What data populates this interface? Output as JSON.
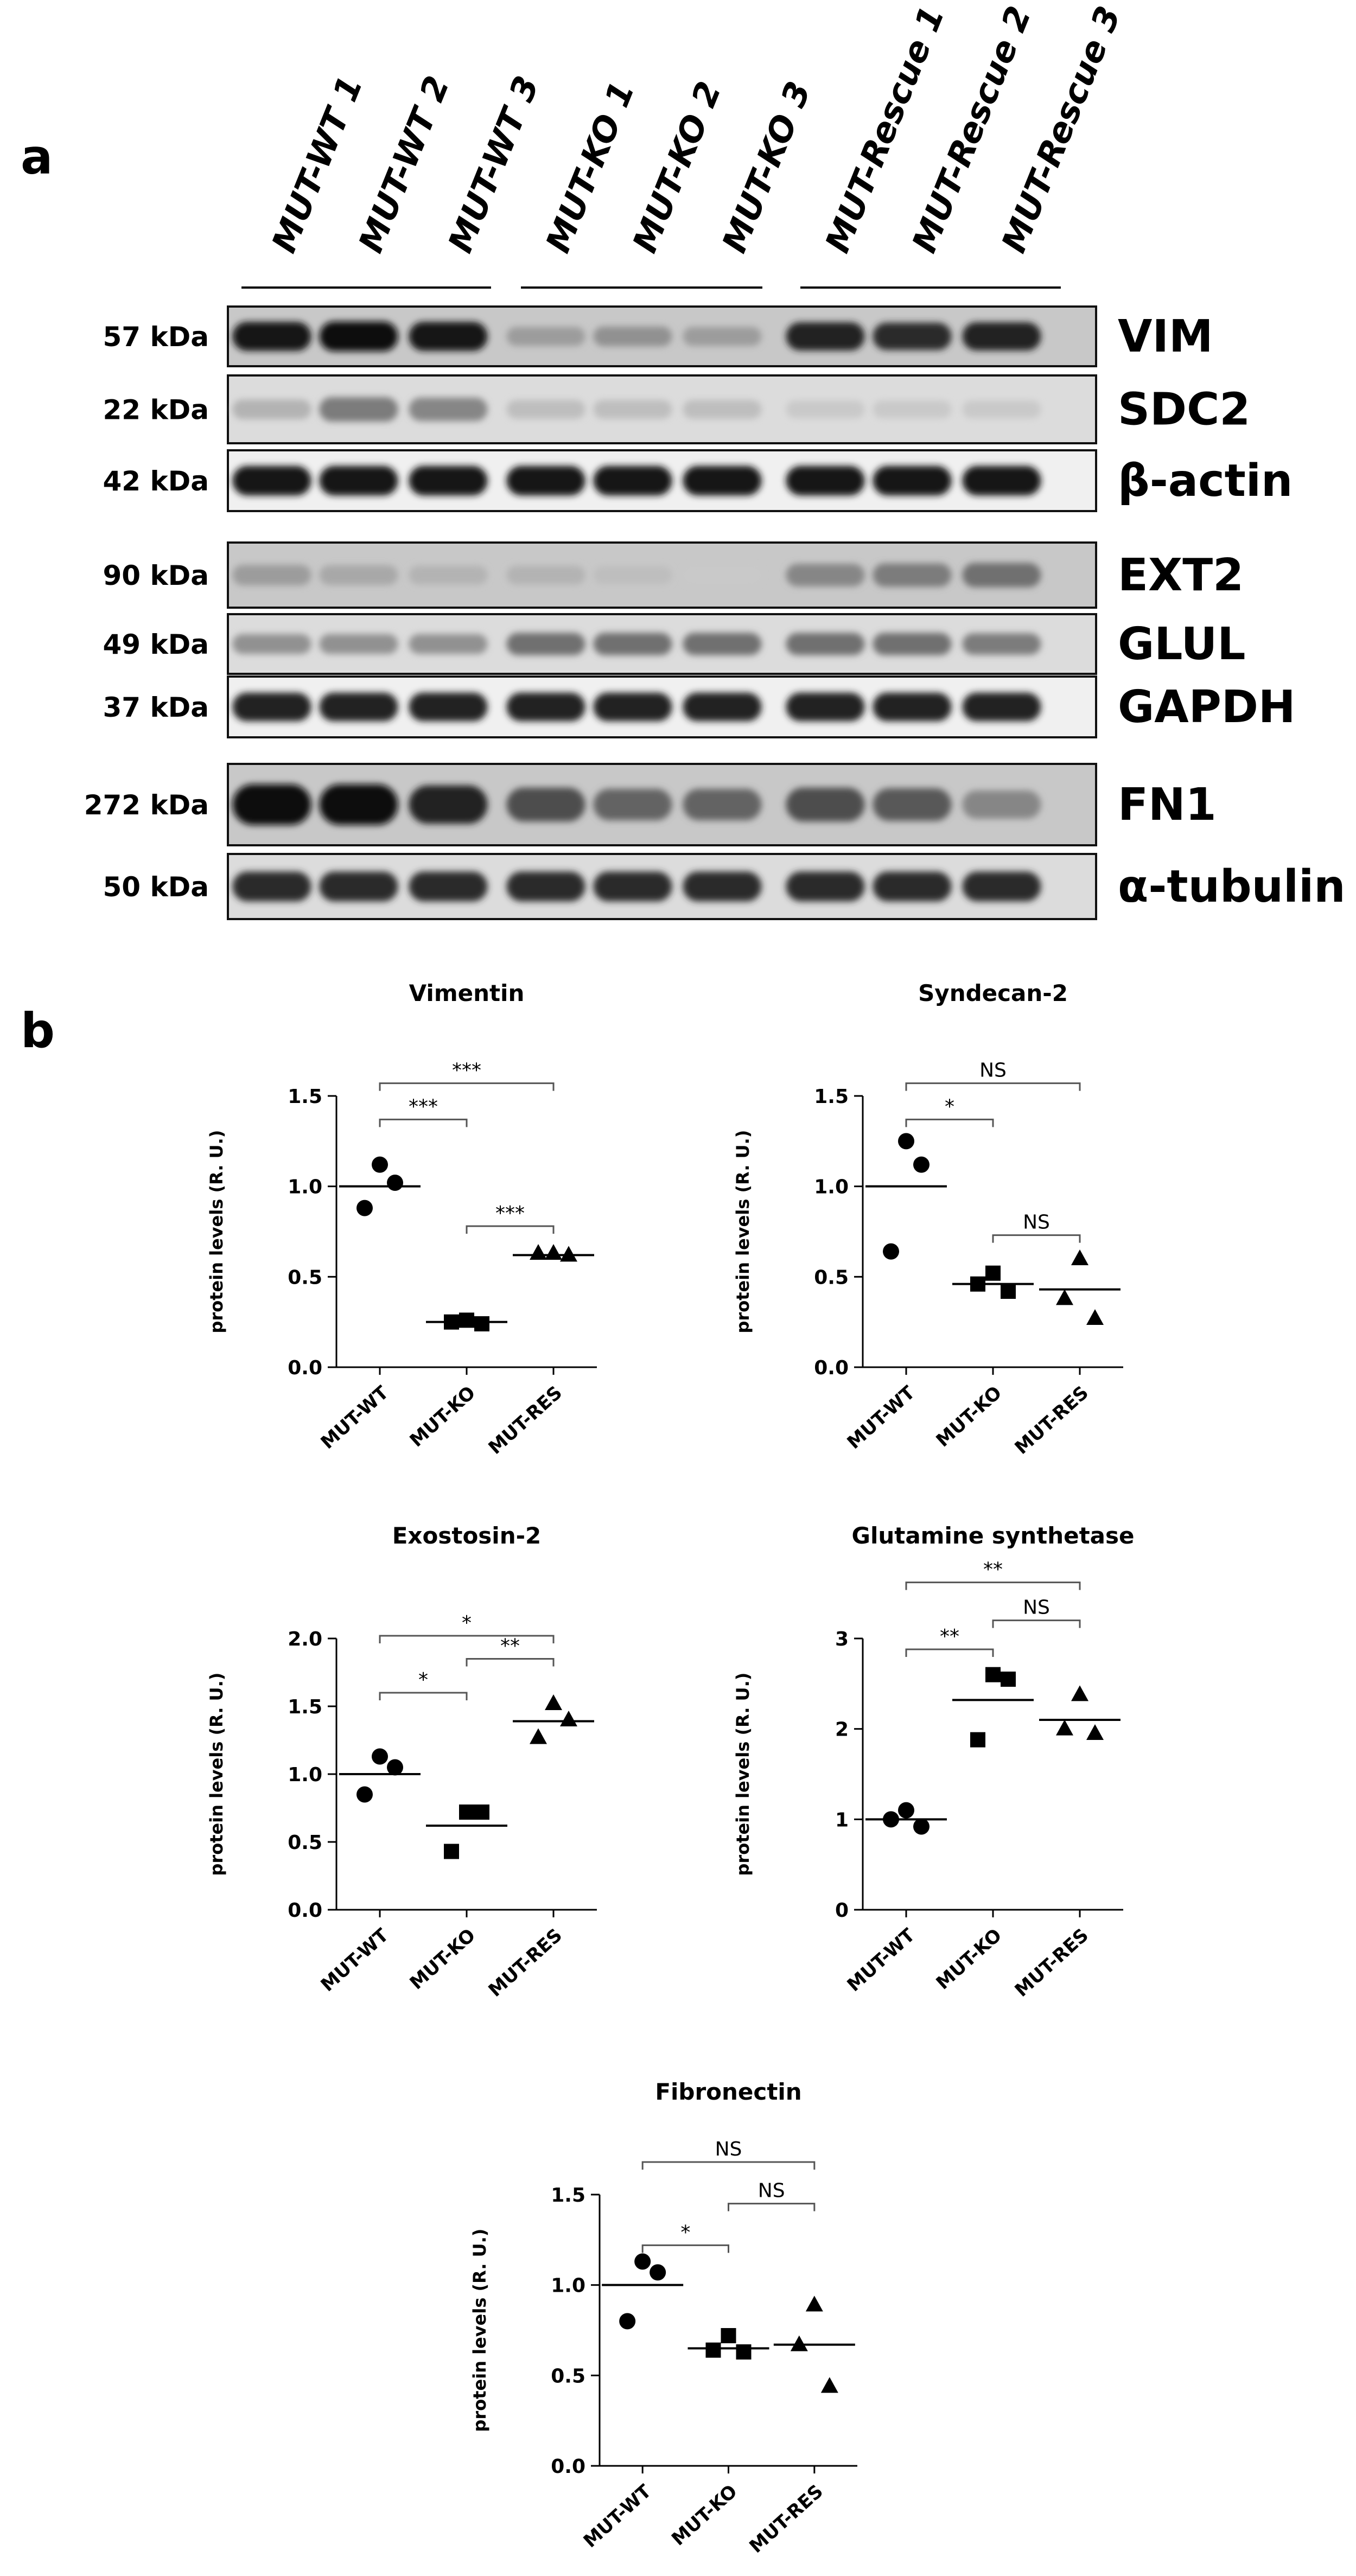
{
  "panel_a": {
    "letter": "a",
    "lane_labels": [
      "MUT-WT 1",
      "MUT-WT 2",
      "MUT-WT 3",
      "MUT-KO 1",
      "MUT-KO 2",
      "MUT-KO 3",
      "MUT-Rescue 1",
      "MUT-Rescue 2",
      "MUT-Rescue 3"
    ],
    "blots": [
      {
        "protein": "VIM",
        "kda": "57 kDa",
        "intensity": [
          0.95,
          1.0,
          0.95,
          0.35,
          0.4,
          0.35,
          0.9,
          0.85,
          0.9
        ]
      },
      {
        "protein": "SDC2",
        "kda": "22 kDa",
        "intensity": [
          0.25,
          0.5,
          0.45,
          0.2,
          0.2,
          0.2,
          0.15,
          0.15,
          0.15
        ]
      },
      {
        "protein": "β-actin",
        "kda": "42 kDa",
        "intensity": [
          0.95,
          0.95,
          0.95,
          0.95,
          0.95,
          0.95,
          0.95,
          0.95,
          0.95
        ]
      },
      {
        "protein": "EXT2",
        "kda": "90 kDa",
        "intensity": [
          0.35,
          0.3,
          0.25,
          0.25,
          0.2,
          0.15,
          0.45,
          0.5,
          0.55
        ]
      },
      {
        "protein": "GLUL",
        "kda": "49 kDa",
        "intensity": [
          0.4,
          0.4,
          0.4,
          0.55,
          0.55,
          0.55,
          0.55,
          0.55,
          0.5
        ]
      },
      {
        "protein": "GAPDH",
        "kda": "37 kDa",
        "intensity": [
          0.9,
          0.9,
          0.9,
          0.9,
          0.9,
          0.9,
          0.9,
          0.9,
          0.9
        ]
      },
      {
        "protein": "FN1",
        "kda": "272 kDa",
        "intensity": [
          1.0,
          1.0,
          0.9,
          0.7,
          0.6,
          0.6,
          0.7,
          0.65,
          0.45
        ]
      },
      {
        "protein": "α-tubulin",
        "kda": "50 kDa",
        "intensity": [
          0.85,
          0.85,
          0.85,
          0.85,
          0.85,
          0.85,
          0.85,
          0.85,
          0.85
        ]
      }
    ]
  },
  "panel_b": {
    "letter": "b"
  },
  "chart_data": [
    {
      "type": "scatter",
      "title": "Vimentin",
      "xlabel": "",
      "ylabel": "protein levels (R. U.)",
      "categories": [
        "MUT-WT",
        "MUT-KO",
        "MUT-RES"
      ],
      "ylim": [
        0,
        1.5
      ],
      "yticks": [
        "0.0",
        "0.5",
        "1.0",
        "1.5"
      ],
      "series": [
        {
          "marker": "circle",
          "values": [
            1.12,
            1.02,
            0.88
          ],
          "mean": 1.0
        },
        {
          "marker": "square",
          "values": [
            0.26,
            0.24,
            0.25
          ],
          "mean": 0.25
        },
        {
          "marker": "triangle",
          "values": [
            0.63,
            0.62,
            0.63
          ],
          "mean": 0.62
        }
      ],
      "comparisons": [
        {
          "from": 0,
          "to": 1,
          "label": "***",
          "y": 1.37
        },
        {
          "from": 0,
          "to": 2,
          "label": "***",
          "y": 1.57
        },
        {
          "from": 1,
          "to": 2,
          "label": "***",
          "y": 0.78
        }
      ]
    },
    {
      "type": "scatter",
      "title": "Syndecan-2",
      "xlabel": "",
      "ylabel": "protein levels (R. U.)",
      "categories": [
        "MUT-WT",
        "MUT-KO",
        "MUT-RES"
      ],
      "ylim": [
        0,
        1.5
      ],
      "yticks": [
        "0.0",
        "0.5",
        "1.0",
        "1.5"
      ],
      "series": [
        {
          "marker": "circle",
          "values": [
            1.25,
            1.12,
            0.64
          ],
          "mean": 1.0
        },
        {
          "marker": "square",
          "values": [
            0.52,
            0.42,
            0.46
          ],
          "mean": 0.46
        },
        {
          "marker": "triangle",
          "values": [
            0.6,
            0.27,
            0.38
          ],
          "mean": 0.43
        }
      ],
      "comparisons": [
        {
          "from": 0,
          "to": 1,
          "label": "*",
          "y": 1.37
        },
        {
          "from": 0,
          "to": 2,
          "label": "NS",
          "y": 1.57
        },
        {
          "from": 1,
          "to": 2,
          "label": "NS",
          "y": 0.73
        }
      ]
    },
    {
      "type": "scatter",
      "title": "Exostosin-2",
      "xlabel": "",
      "ylabel": "protein levels (R. U.)",
      "categories": [
        "MUT-WT",
        "MUT-KO",
        "MUT-RES"
      ],
      "ylim": [
        0,
        2.0
      ],
      "yticks": [
        "0.0",
        "0.5",
        "1.0",
        "1.5",
        "2.0"
      ],
      "series": [
        {
          "marker": "circle",
          "values": [
            1.13,
            1.05,
            0.85
          ],
          "mean": 1.0
        },
        {
          "marker": "square",
          "values": [
            0.72,
            0.72,
            0.43
          ],
          "mean": 0.62
        },
        {
          "marker": "triangle",
          "values": [
            1.52,
            1.4,
            1.27
          ],
          "mean": 1.39
        }
      ],
      "comparisons": [
        {
          "from": 0,
          "to": 1,
          "label": "*",
          "y": 1.6
        },
        {
          "from": 0,
          "to": 2,
          "label": "*",
          "y": 2.02
        },
        {
          "from": 1,
          "to": 2,
          "label": "**",
          "y": 1.85
        }
      ]
    },
    {
      "type": "scatter",
      "title": "Glutamine synthetase",
      "xlabel": "",
      "ylabel": "protein levels (R. U.)",
      "categories": [
        "MUT-WT",
        "MUT-KO",
        "MUT-RES"
      ],
      "ylim": [
        0,
        3
      ],
      "yticks": [
        "0",
        "1",
        "2",
        "3"
      ],
      "series": [
        {
          "marker": "circle",
          "values": [
            1.1,
            0.92,
            1.0
          ],
          "mean": 1.0
        },
        {
          "marker": "square",
          "values": [
            2.6,
            2.55,
            1.88
          ],
          "mean": 2.32
        },
        {
          "marker": "triangle",
          "values": [
            2.38,
            1.95,
            2.0
          ],
          "mean": 2.1
        }
      ],
      "comparisons": [
        {
          "from": 0,
          "to": 1,
          "label": "**",
          "y": 2.88
        },
        {
          "from": 0,
          "to": 2,
          "label": "**",
          "y": 3.62
        },
        {
          "from": 1,
          "to": 2,
          "label": "NS",
          "y": 3.2
        }
      ]
    },
    {
      "type": "scatter",
      "title": "Fibronectin",
      "xlabel": "",
      "ylabel": "protein levels (R. U.)",
      "categories": [
        "MUT-WT",
        "MUT-KO",
        "MUT-RES"
      ],
      "ylim": [
        0,
        1.5
      ],
      "yticks": [
        "0.0",
        "0.5",
        "1.0",
        "1.5"
      ],
      "series": [
        {
          "marker": "circle",
          "values": [
            1.13,
            1.07,
            0.8
          ],
          "mean": 1.0
        },
        {
          "marker": "square",
          "values": [
            0.72,
            0.63,
            0.64
          ],
          "mean": 0.65
        },
        {
          "marker": "triangle",
          "values": [
            0.89,
            0.44,
            0.67
          ],
          "mean": 0.67
        }
      ],
      "comparisons": [
        {
          "from": 0,
          "to": 1,
          "label": "*",
          "y": 1.22
        },
        {
          "from": 0,
          "to": 2,
          "label": "NS",
          "y": 1.68
        },
        {
          "from": 1,
          "to": 2,
          "label": "NS",
          "y": 1.45
        }
      ]
    }
  ]
}
